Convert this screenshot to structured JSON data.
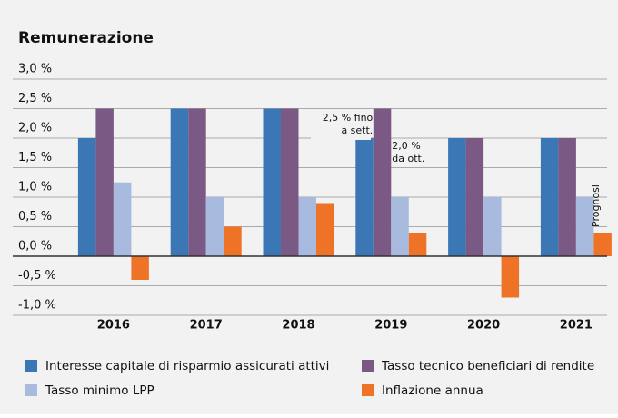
{
  "chart_data": {
    "type": "bar",
    "title": "Remunerazione",
    "categories": [
      "2016",
      "2017",
      "2018",
      "2019",
      "2020",
      "2021"
    ],
    "series": [
      {
        "name": "Interesse capitale di risparmio assicurati attivi",
        "color": "#3a77b4",
        "values": [
          2.0,
          2.5,
          2.5,
          2.0,
          2.0,
          2.0
        ]
      },
      {
        "name": "Tasso tecnico beneficiari di rendite",
        "color": "#7a5a84",
        "values": [
          2.5,
          2.5,
          2.5,
          2.5,
          2.0,
          2.0
        ]
      },
      {
        "name": "Tasso minimo LPP",
        "color": "#a9badf",
        "values": [
          1.25,
          1.0,
          1.0,
          1.0,
          1.0,
          1.0
        ]
      },
      {
        "name": "Inflazione annua",
        "color": "#ef7327",
        "values": [
          -0.4,
          0.5,
          0.9,
          0.4,
          -0.7,
          0.4
        ]
      }
    ],
    "ylim": [
      -1.0,
      3.0
    ],
    "yticks": [
      {
        "value": 3.0,
        "label": "3,0 %"
      },
      {
        "value": 2.5,
        "label": "2,5 %"
      },
      {
        "value": 2.0,
        "label": "2,0 %"
      },
      {
        "value": 1.5,
        "label": "1,5 %"
      },
      {
        "value": 1.0,
        "label": "1,0 %"
      },
      {
        "value": 0.5,
        "label": "0,5 %"
      },
      {
        "value": 0.0,
        "label": "0,0 %"
      },
      {
        "value": -0.5,
        "label": "-0,5 %"
      },
      {
        "value": -1.0,
        "label": "-1,0 %"
      }
    ],
    "grid": true,
    "annotations": [
      "2,5 % fino",
      "a sett.",
      "2,0 %",
      "da ott.",
      "Prognosi"
    ]
  }
}
